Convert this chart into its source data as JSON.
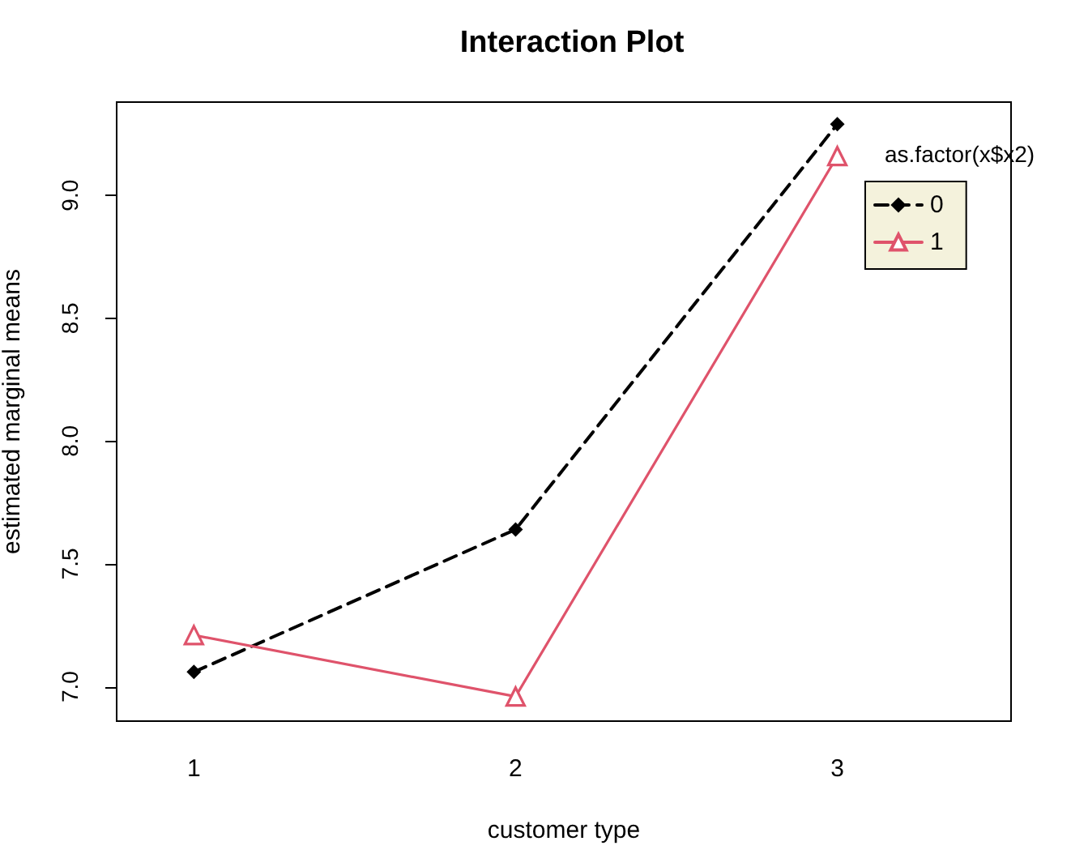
{
  "chart_data": {
    "type": "line",
    "title": "Interaction Plot",
    "xlabel": "customer type",
    "ylabel": "estimated marginal means",
    "legend_title": "as.factor(x$x2)",
    "x": [
      1,
      2,
      3
    ],
    "series": [
      {
        "name": "0",
        "color": "#000000",
        "values": [
          7.06,
          7.64,
          9.29
        ],
        "marker": "diamond",
        "line_style": "dashed"
      },
      {
        "name": "1",
        "color": "#df536b",
        "values": [
          7.21,
          6.96,
          9.16
        ],
        "marker": "triangle",
        "line_style": "solid"
      }
    ],
    "xlim": [
      0.76,
      3.54
    ],
    "xticks": [
      1,
      2,
      3
    ],
    "ylim": [
      6.86,
      9.38
    ],
    "yticks": [
      {
        "value": 7,
        "label": "7.0"
      },
      7.5,
      {
        "value": 8,
        "label": "8.0"
      },
      8.5,
      {
        "value": 9,
        "label": "9.0"
      }
    ],
    "grid": false,
    "legend": "top right"
  }
}
